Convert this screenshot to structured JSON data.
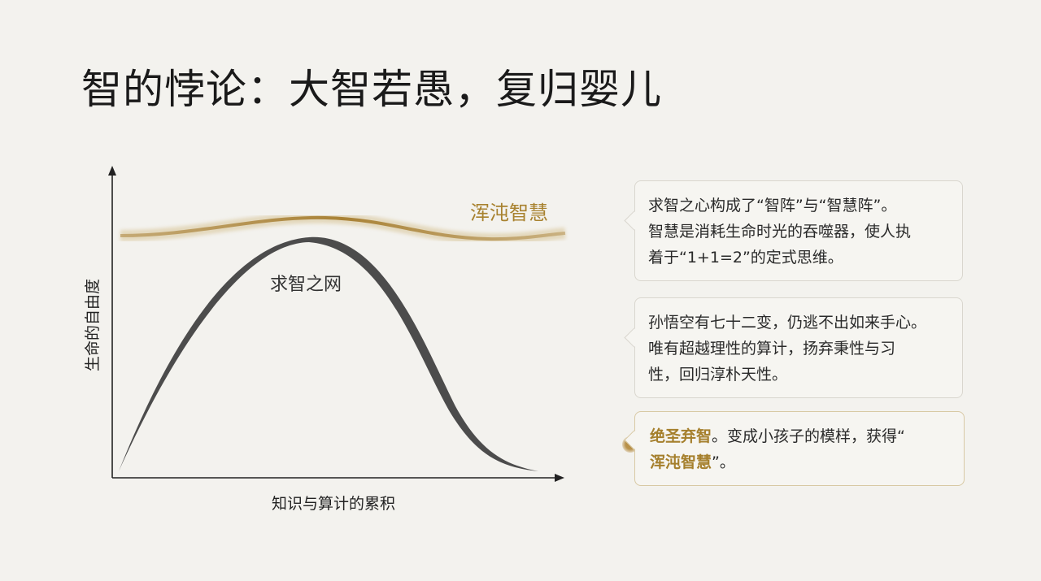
{
  "title": "智的悖论：大智若愚，复归婴儿",
  "diagram": {
    "y_axis_label": "生命的自由度",
    "x_axis_label": "知识与算计的累积",
    "upper_curve_label": "浑沌智慧",
    "lower_curve_label": "求智之网"
  },
  "cards": [
    {
      "lines": [
        "求智之心构成了“智阵”与“智慧阵”。",
        "智慧是消耗生命时光的吞噬器，使人执",
        "着于“1+1=2”的定式思维。"
      ]
    },
    {
      "lines": [
        "孙悟空有七十二变，仍逃不出如来手心。",
        "唯有超越理性的算计，扬弃秉性与习",
        "性，回归淳朴天性。"
      ]
    },
    {
      "lines": [
        [
          "绝圣弃智",
          "。变成小孩子的模样，获得“"
        ],
        [
          "浑沌智慧",
          "”。"
        ]
      ]
    }
  ]
}
